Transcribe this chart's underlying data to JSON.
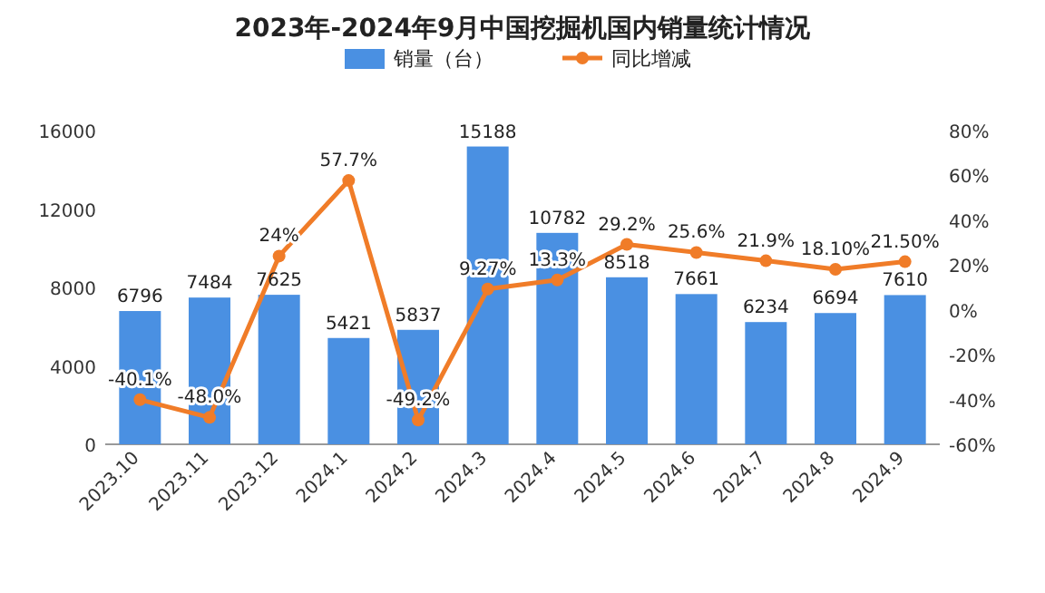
{
  "chart_data": {
    "type": "bar",
    "title": "2023年-2024年9月中国挖掘机国内销量统计情况",
    "categories": [
      "2023.10",
      "2023.11",
      "2023.12",
      "2024.1",
      "2024.2",
      "2024.3",
      "2024.4",
      "2024.5",
      "2024.6",
      "2024.7",
      "2024.8",
      "2024.9"
    ],
    "series": [
      {
        "name": "销量（台）",
        "color": "#4a90e2",
        "values": [
          6796,
          7484,
          7625,
          5421,
          5837,
          15188,
          10782,
          8518,
          7661,
          6234,
          6694,
          7610
        ],
        "value_labels": [
          "6796",
          "7484",
          "7625",
          "5421",
          "5837",
          "15188",
          "10782",
          "8518",
          "7661",
          "6234",
          "6694",
          "7610"
        ]
      },
      {
        "name": "同比增减",
        "type": "line",
        "axis": "y2",
        "color": "#f07c28",
        "marker": "circle",
        "values": [
          -40.1,
          -48.0,
          24,
          57.7,
          -49.2,
          9.27,
          13.3,
          29.2,
          25.6,
          21.9,
          18.1,
          21.5
        ],
        "value_labels": [
          "-40.1%",
          "-48.0%",
          "24%",
          "57.7%",
          "-49.2%",
          "9.27%",
          "13.3%",
          "29.2%",
          "25.6%",
          "21.9%",
          "18.10%",
          "21.50%"
        ]
      }
    ],
    "ylim": [
      0,
      16000
    ],
    "yticks": [
      0,
      4000,
      8000,
      12000,
      16000
    ],
    "y2lim": [
      -60,
      80
    ],
    "y2ticks": [
      {
        "value": -60,
        "label": "-60%"
      },
      {
        "value": -40,
        "label": "-40%"
      },
      {
        "value": -20,
        "label": "-20%"
      },
      {
        "value": 0,
        "label": "0%"
      },
      {
        "value": 20,
        "label": "20%"
      },
      {
        "value": 40,
        "label": "40%"
      },
      {
        "value": 60,
        "label": "60%"
      },
      {
        "value": 80,
        "label": "80%"
      }
    ],
    "legend": "top"
  }
}
